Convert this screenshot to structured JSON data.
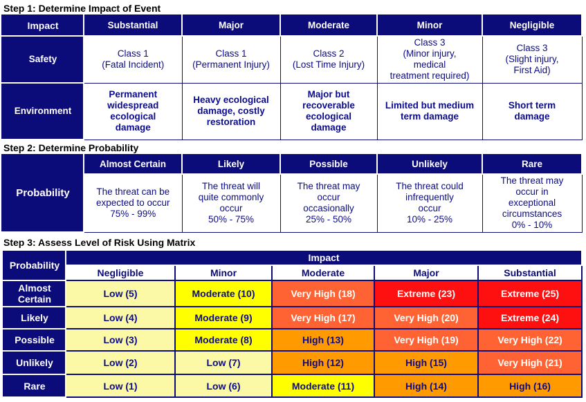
{
  "step1": {
    "title": "Step 1: Determine Impact of Event",
    "corner": "Impact",
    "columns": [
      "Substantial",
      "Major",
      "Moderate",
      "Minor",
      "Negligible"
    ],
    "rows": [
      {
        "label": "Safety",
        "cells": [
          "Class 1\n(Fatal Incident)",
          "Class 1\n(Permanent Injury)",
          "Class 2\n(Lost Time Injury)",
          "Class 3\n(Minor injury,\nmedical\ntreatment required)",
          "Class 3\n(Slight injury,\nFirst Aid)"
        ]
      },
      {
        "label": "Environment",
        "cells": [
          "Permanent\nwidespread\necological\ndamage",
          "Heavy ecological\ndamage, costly\nrestoration",
          "Major but\nrecoverable\necological\ndamage",
          "Limited but medium\nterm damage",
          "Short term\ndamage"
        ]
      }
    ]
  },
  "step2": {
    "title": "Step 2: Determine Probability",
    "row_label": "Probability",
    "columns": [
      "Almost Certain",
      "Likely",
      "Possible",
      "Unlikely",
      "Rare"
    ],
    "cells": [
      "The threat can be\nexpected to occur\n75% - 99%",
      "The threat will\nquite commonly\noccur\n50% - 75%",
      "The threat may\noccur\noccasionally\n25% - 50%",
      "The threat could\ninfrequently\noccur\n10% - 25%",
      "The threat may\noccur in\nexceptional\ncircumstances\n0% - 10%"
    ]
  },
  "step3": {
    "title": "Step 3: Assess Level of Risk Using Matrix",
    "impact_header": "Impact",
    "corner": "Probability",
    "columns": [
      "Negligible",
      "Minor",
      "Moderate",
      "Major",
      "Substantial"
    ],
    "rows": [
      {
        "label": "Almost\nCertain",
        "cells": [
          {
            "text": "Low (5)",
            "level": "low"
          },
          {
            "text": "Moderate (10)",
            "level": "moderate"
          },
          {
            "text": "Very High (18)",
            "level": "veryhigh"
          },
          {
            "text": "Extreme (23)",
            "level": "extreme"
          },
          {
            "text": "Extreme (25)",
            "level": "extreme"
          }
        ]
      },
      {
        "label": "Likely",
        "cells": [
          {
            "text": "Low (4)",
            "level": "low"
          },
          {
            "text": "Moderate (9)",
            "level": "moderate"
          },
          {
            "text": "Very High (17)",
            "level": "veryhigh"
          },
          {
            "text": "Very High (20)",
            "level": "veryhigh"
          },
          {
            "text": "Extreme (24)",
            "level": "extreme"
          }
        ]
      },
      {
        "label": "Possible",
        "cells": [
          {
            "text": "Low (3)",
            "level": "low"
          },
          {
            "text": "Moderate (8)",
            "level": "moderate"
          },
          {
            "text": "High (13)",
            "level": "high"
          },
          {
            "text": "Very High (19)",
            "level": "veryhigh"
          },
          {
            "text": "Very High (22)",
            "level": "veryhigh"
          }
        ]
      },
      {
        "label": "Unlikely",
        "cells": [
          {
            "text": "Low (2)",
            "level": "low"
          },
          {
            "text": "Low (7)",
            "level": "low"
          },
          {
            "text": "High (12)",
            "level": "high"
          },
          {
            "text": "High (15)",
            "level": "high"
          },
          {
            "text": "Very High (21)",
            "level": "veryhigh"
          }
        ]
      },
      {
        "label": "Rare",
        "cells": [
          {
            "text": "Low (1)",
            "level": "low"
          },
          {
            "text": "Low (6)",
            "level": "low"
          },
          {
            "text": "Moderate (11)",
            "level": "moderate"
          },
          {
            "text": "High (14)",
            "level": "high"
          },
          {
            "text": "High (16)",
            "level": "high"
          }
        ]
      }
    ]
  },
  "colors": {
    "navy": "#0b0b7a",
    "low": "#fbf8a6",
    "moderate": "#ffff00",
    "high": "#ff9a00",
    "very_high": "#ff6333",
    "extreme": "#ff1010"
  }
}
